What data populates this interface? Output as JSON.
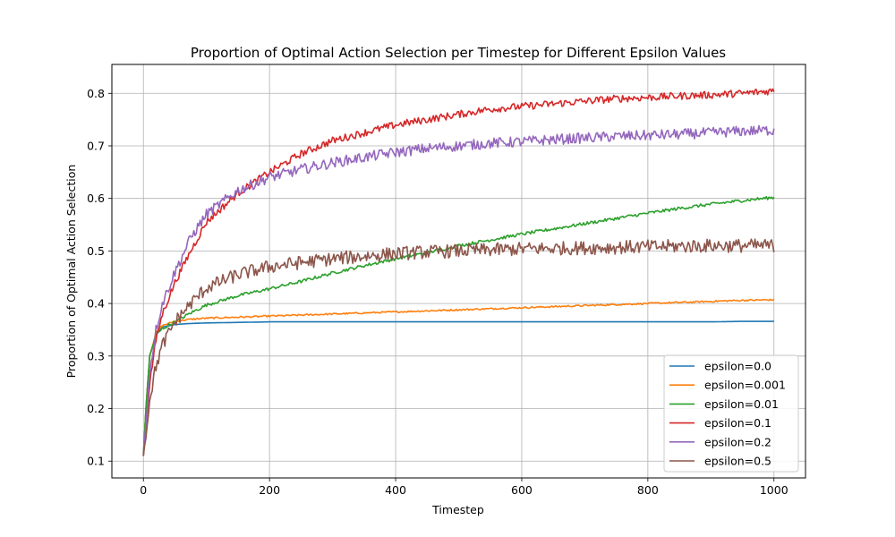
{
  "chart_data": {
    "type": "line",
    "title": "Proportion of Optimal Action Selection per Timestep for Different Epsilon Values",
    "xlabel": "Timestep",
    "ylabel": "Proportion of Optimal Action Selection",
    "xlim": [
      -50,
      1050
    ],
    "ylim": [
      0.068,
      0.855
    ],
    "xticks": [
      0,
      200,
      400,
      600,
      800,
      1000
    ],
    "xtick_labels": [
      "0",
      "200",
      "400",
      "600",
      "800",
      "1000"
    ],
    "yticks": [
      0.1,
      0.2,
      0.3,
      0.4,
      0.5,
      0.6,
      0.7,
      0.8
    ],
    "ytick_labels": [
      "0.1",
      "0.2",
      "0.3",
      "0.4",
      "0.5",
      "0.6",
      "0.7",
      "0.8"
    ],
    "grid": true,
    "legend_position": "lower-right",
    "x": [
      0,
      5,
      10,
      20,
      30,
      50,
      75,
      100,
      150,
      200,
      250,
      300,
      350,
      400,
      450,
      500,
      550,
      600,
      650,
      700,
      750,
      800,
      850,
      900,
      950,
      1000
    ],
    "series": [
      {
        "name": "epsilon=0.0",
        "color": "#1f77b4",
        "noise": 0.0,
        "values": [
          0.11,
          0.22,
          0.3,
          0.34,
          0.355,
          0.36,
          0.362,
          0.363,
          0.364,
          0.365,
          0.365,
          0.365,
          0.365,
          0.365,
          0.365,
          0.365,
          0.365,
          0.365,
          0.365,
          0.365,
          0.365,
          0.365,
          0.365,
          0.365,
          0.366,
          0.366
        ]
      },
      {
        "name": "epsilon=0.001",
        "color": "#ff7f0e",
        "noise": 0.0015,
        "values": [
          0.11,
          0.22,
          0.3,
          0.345,
          0.358,
          0.366,
          0.37,
          0.372,
          0.374,
          0.376,
          0.378,
          0.38,
          0.382,
          0.384,
          0.386,
          0.388,
          0.39,
          0.392,
          0.394,
          0.396,
          0.398,
          0.4,
          0.402,
          0.404,
          0.406,
          0.407
        ]
      },
      {
        "name": "epsilon=0.01",
        "color": "#2ca02c",
        "noise": 0.003,
        "values": [
          0.11,
          0.22,
          0.3,
          0.34,
          0.352,
          0.365,
          0.382,
          0.397,
          0.415,
          0.428,
          0.442,
          0.458,
          0.472,
          0.485,
          0.497,
          0.51,
          0.521,
          0.532,
          0.542,
          0.552,
          0.562,
          0.572,
          0.581,
          0.589,
          0.596,
          0.602
        ]
      },
      {
        "name": "epsilon=0.1",
        "color": "#d62728",
        "noise": 0.007,
        "values": [
          0.11,
          0.18,
          0.25,
          0.33,
          0.38,
          0.44,
          0.5,
          0.555,
          0.61,
          0.65,
          0.685,
          0.71,
          0.725,
          0.74,
          0.75,
          0.76,
          0.77,
          0.775,
          0.78,
          0.785,
          0.79,
          0.792,
          0.795,
          0.797,
          0.8,
          0.805
        ]
      },
      {
        "name": "epsilon=0.2",
        "color": "#9467bd",
        "noise": 0.01,
        "values": [
          0.11,
          0.19,
          0.27,
          0.35,
          0.4,
          0.46,
          0.525,
          0.57,
          0.615,
          0.64,
          0.655,
          0.668,
          0.678,
          0.688,
          0.695,
          0.7,
          0.705,
          0.708,
          0.712,
          0.715,
          0.718,
          0.72,
          0.722,
          0.725,
          0.728,
          0.73
        ]
      },
      {
        "name": "epsilon=0.5",
        "color": "#8c564b",
        "noise": 0.013,
        "values": [
          0.11,
          0.16,
          0.22,
          0.28,
          0.32,
          0.365,
          0.4,
          0.43,
          0.455,
          0.47,
          0.478,
          0.485,
          0.49,
          0.495,
          0.498,
          0.5,
          0.502,
          0.504,
          0.505,
          0.506,
          0.507,
          0.508,
          0.509,
          0.51,
          0.51,
          0.51
        ]
      }
    ]
  }
}
